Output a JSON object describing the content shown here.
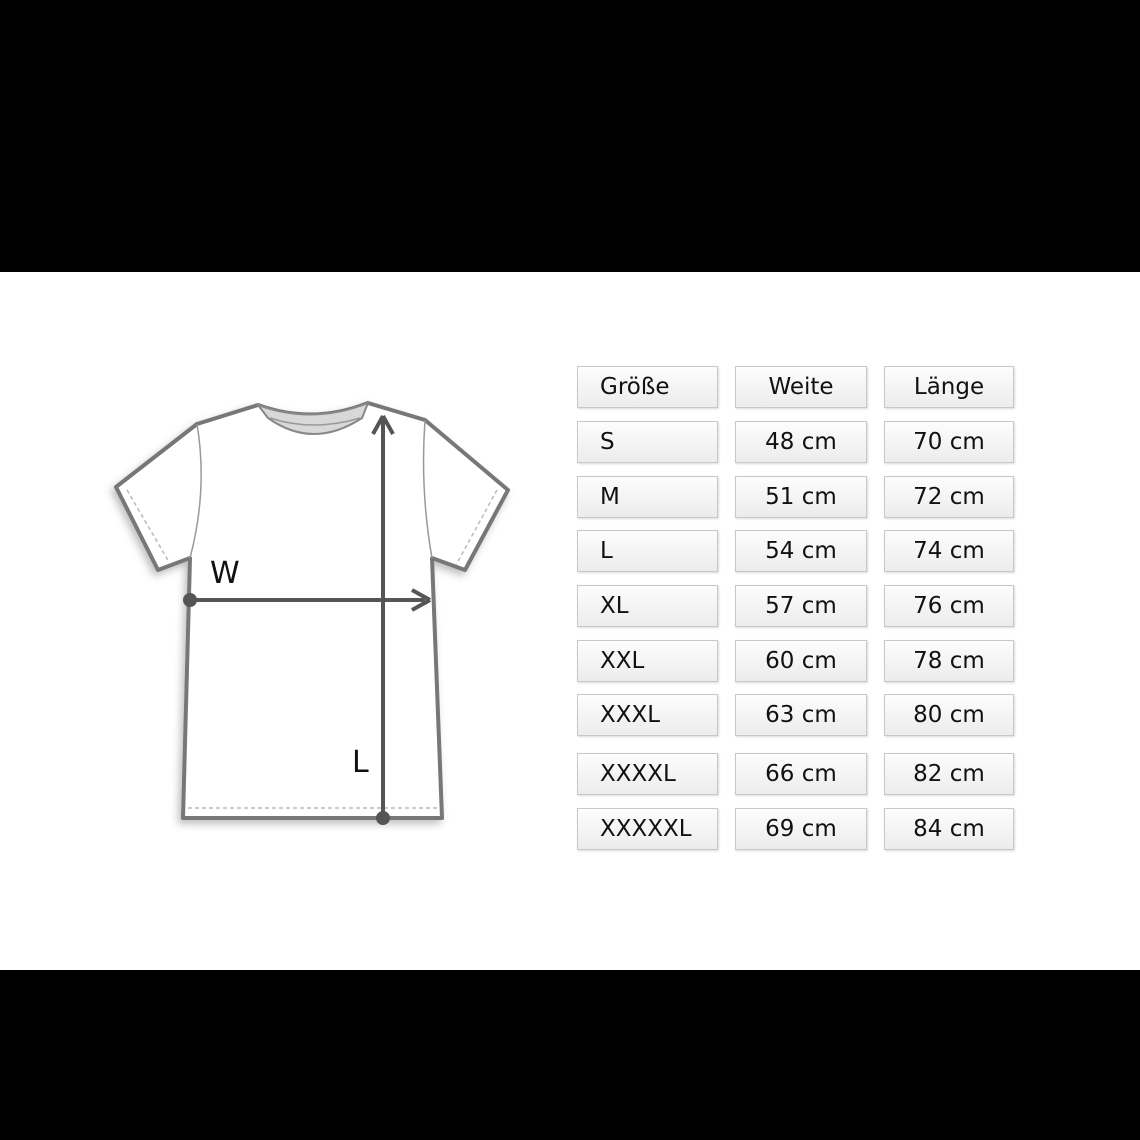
{
  "diagram": {
    "width_label": "W",
    "length_label": "L",
    "line_color": "#555555"
  },
  "table": {
    "headers": [
      "Größe",
      "Weite",
      "Länge"
    ],
    "rows": [
      [
        "S",
        "48 cm",
        "70 cm"
      ],
      [
        "M",
        "51 cm",
        "72 cm"
      ],
      [
        "L",
        "54 cm",
        "74 cm"
      ],
      [
        "XL",
        "57 cm",
        "76 cm"
      ],
      [
        "XXL",
        "60 cm",
        "78 cm"
      ],
      [
        "XXXL",
        "63 cm",
        "80 cm"
      ],
      [
        "XXXXL",
        "66 cm",
        "82 cm"
      ],
      [
        "XXXXXL",
        "69 cm",
        "84 cm"
      ]
    ]
  }
}
